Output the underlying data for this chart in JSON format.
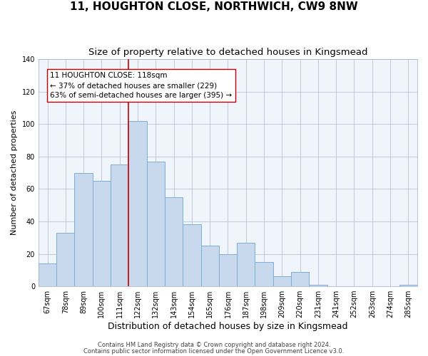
{
  "title": "11, HOUGHTON CLOSE, NORTHWICH, CW9 8NW",
  "subtitle": "Size of property relative to detached houses in Kingsmead",
  "xlabel": "Distribution of detached houses by size in Kingsmead",
  "ylabel": "Number of detached properties",
  "bar_labels": [
    "67sqm",
    "78sqm",
    "89sqm",
    "100sqm",
    "111sqm",
    "122sqm",
    "132sqm",
    "143sqm",
    "154sqm",
    "165sqm",
    "176sqm",
    "187sqm",
    "198sqm",
    "209sqm",
    "220sqm",
    "231sqm",
    "241sqm",
    "252sqm",
    "263sqm",
    "274sqm",
    "285sqm"
  ],
  "bar_heights": [
    14,
    33,
    70,
    65,
    75,
    102,
    77,
    55,
    38,
    25,
    20,
    27,
    15,
    6,
    9,
    1,
    0,
    0,
    0,
    0,
    1
  ],
  "bar_color": "#c8d9ee",
  "bar_edge_color": "#7aafd4",
  "vline_x_index": 4.5,
  "vline_color": "#cc0000",
  "annotation_text": "11 HOUGHTON CLOSE: 118sqm\n← 37% of detached houses are smaller (229)\n63% of semi-detached houses are larger (395) →",
  "annotation_box_color": "#ffffff",
  "annotation_box_edge": "#cc0000",
  "ylim": [
    0,
    140
  ],
  "yticks": [
    0,
    20,
    40,
    60,
    80,
    100,
    120,
    140
  ],
  "footer_line1": "Contains HM Land Registry data © Crown copyright and database right 2024.",
  "footer_line2": "Contains public sector information licensed under the Open Government Licence v3.0.",
  "title_fontsize": 11,
  "subtitle_fontsize": 9.5,
  "xlabel_fontsize": 9,
  "ylabel_fontsize": 8,
  "annotation_fontsize": 7.5,
  "tick_fontsize": 7,
  "footer_fontsize": 6
}
